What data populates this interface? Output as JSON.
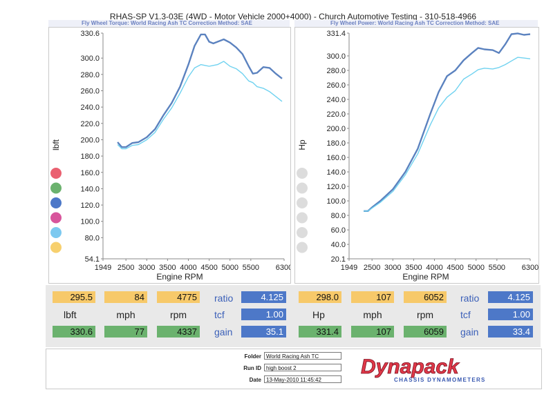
{
  "header": {
    "title": "RHAS-SP V1.3-03E  (4WD - Motor Vehicle 2000+4000) - Church Automotive Testing - 310-518-4966",
    "left_sub": "Fly Wheel Torque: World Racing Ash TC     Correction Method: SAE",
    "right_sub": "Fly Wheel Power: World Racing Ash TC     Correction Method: SAE"
  },
  "legend_colors_left": [
    "#ea6070",
    "#6bb26e",
    "#4d78c8",
    "#d8559c",
    "#7cc9f0",
    "#f7d06e"
  ],
  "legend_colors_right": [
    "#dcdcdc",
    "#dcdcdc",
    "#dcdcdc",
    "#dcdcdc",
    "#dcdcdc",
    "#dcdcdc"
  ],
  "chart_data": [
    {
      "type": "line",
      "ylabel": "lbft",
      "xlabel": "Engine RPM",
      "xlim": [
        1949,
        6300
      ],
      "ylim": [
        54.1,
        330.6
      ],
      "x_ticks": [
        "1949",
        "2500",
        "3000",
        "3500",
        "4000",
        "4500",
        "5000",
        "5500",
        "6300"
      ],
      "x_tick_values": [
        1949,
        2500,
        3000,
        3500,
        4000,
        4500,
        5000,
        5500,
        6300
      ],
      "y_ticks": [
        "54.1",
        "80.0",
        "100.0",
        "120.0",
        "140.0",
        "160.0",
        "180.0",
        "200.0",
        "220.0",
        "240.0",
        "260.0",
        "280.0",
        "300.0",
        "330.6"
      ],
      "y_tick_values": [
        54.1,
        80,
        100,
        120,
        140,
        160,
        180,
        200,
        220,
        240,
        260,
        280,
        300,
        330.6
      ],
      "series": [
        {
          "color": "#5b82bf",
          "x": [
            2300,
            2400,
            2500,
            2650,
            2800,
            3000,
            3200,
            3400,
            3600,
            3800,
            4000,
            4150,
            4300,
            4400,
            4500,
            4600,
            4700,
            4850,
            5000,
            5150,
            5300,
            5450,
            5550,
            5650,
            5800,
            5950,
            6100,
            6250
          ],
          "y": [
            197,
            191,
            191,
            196,
            197,
            203,
            213,
            230,
            245,
            265,
            292,
            315,
            329,
            329,
            320,
            318,
            320,
            323,
            319,
            313,
            305,
            290,
            281,
            282,
            289,
            288,
            281,
            275
          ]
        },
        {
          "color": "#6fd2f0",
          "x": [
            2300,
            2400,
            2500,
            2650,
            2800,
            3000,
            3200,
            3400,
            3600,
            3800,
            4000,
            4150,
            4300,
            4400,
            4500,
            4600,
            4700,
            4850,
            5000,
            5150,
            5300,
            5450,
            5550,
            5650,
            5800,
            5950,
            6100,
            6250
          ],
          "y": [
            194,
            189,
            189,
            193,
            194,
            200,
            209,
            225,
            239,
            257,
            277,
            288,
            292,
            291,
            290,
            291,
            292,
            296,
            290,
            287,
            281,
            272,
            270,
            265,
            263,
            259,
            253,
            247
          ]
        }
      ]
    },
    {
      "type": "line",
      "ylabel": "Hp",
      "xlabel": "Engine RPM",
      "xlim": [
        1949,
        6300
      ],
      "ylim": [
        20.1,
        331.4
      ],
      "x_ticks": [
        "1949",
        "2500",
        "3000",
        "3500",
        "4000",
        "4500",
        "5000",
        "5500",
        "6300"
      ],
      "x_tick_values": [
        1949,
        2500,
        3000,
        3500,
        4000,
        4500,
        5000,
        5500,
        6300
      ],
      "y_ticks": [
        "20.1",
        "40.0",
        "60.0",
        "80.0",
        "100.0",
        "120.0",
        "140.0",
        "160.0",
        "180.0",
        "200.0",
        "220.0",
        "240.0",
        "260.0",
        "280.0",
        "300.0",
        "331.4"
      ],
      "y_tick_values": [
        20.1,
        40,
        60,
        80,
        100,
        120,
        140,
        160,
        180,
        200,
        220,
        240,
        260,
        280,
        300,
        331.4
      ],
      "series": [
        {
          "color": "#5b82bf",
          "x": [
            2300,
            2400,
            2500,
            2700,
            3000,
            3300,
            3600,
            3900,
            4100,
            4300,
            4500,
            4700,
            4900,
            5050,
            5200,
            5400,
            5550,
            5700,
            5850,
            6000,
            6150,
            6300
          ],
          "y": [
            86,
            86,
            91,
            100,
            116,
            140,
            172,
            220,
            250,
            272,
            280,
            294,
            304,
            311,
            309,
            308,
            304,
            316,
            330,
            331,
            329,
            330
          ]
        },
        {
          "color": "#6fd2f0",
          "x": [
            2300,
            2400,
            2500,
            2700,
            3000,
            3300,
            3600,
            3900,
            4100,
            4300,
            4500,
            4700,
            4900,
            5050,
            5200,
            5400,
            5550,
            5700,
            5850,
            6000,
            6150,
            6300
          ],
          "y": [
            86,
            86,
            90,
            98,
            113,
            136,
            165,
            205,
            228,
            243,
            252,
            268,
            275,
            281,
            283,
            282,
            284,
            288,
            293,
            298,
            297,
            296
          ]
        }
      ]
    }
  ],
  "readout_left": {
    "top": [
      "295.5",
      "84",
      "4775"
    ],
    "labels": [
      "lbft",
      "mph",
      "rpm"
    ],
    "bottom": [
      "330.6",
      "77",
      "4337"
    ],
    "side_labels": [
      "ratio",
      "tcf",
      "gain"
    ],
    "side_values": [
      "4.125",
      "1.00",
      "35.1"
    ]
  },
  "readout_right": {
    "top": [
      "298.0",
      "107",
      "6052"
    ],
    "labels": [
      "Hp",
      "mph",
      "rpm"
    ],
    "bottom": [
      "331.4",
      "107",
      "6059"
    ],
    "side_labels": [
      "ratio",
      "tcf",
      "gain"
    ],
    "side_values": [
      "4.125",
      "1.00",
      "33.4"
    ]
  },
  "footer": {
    "folder_label": "Folder",
    "folder_value": "World Racing Ash TC",
    "runid_label": "Run ID",
    "runid_value": "high boost 2",
    "date_label": "Date",
    "date_value": "13-May-2010  11:45:42",
    "logo_text": "Dynapack",
    "logo_sub": "CHASSIS DYNAMOMETERS"
  }
}
